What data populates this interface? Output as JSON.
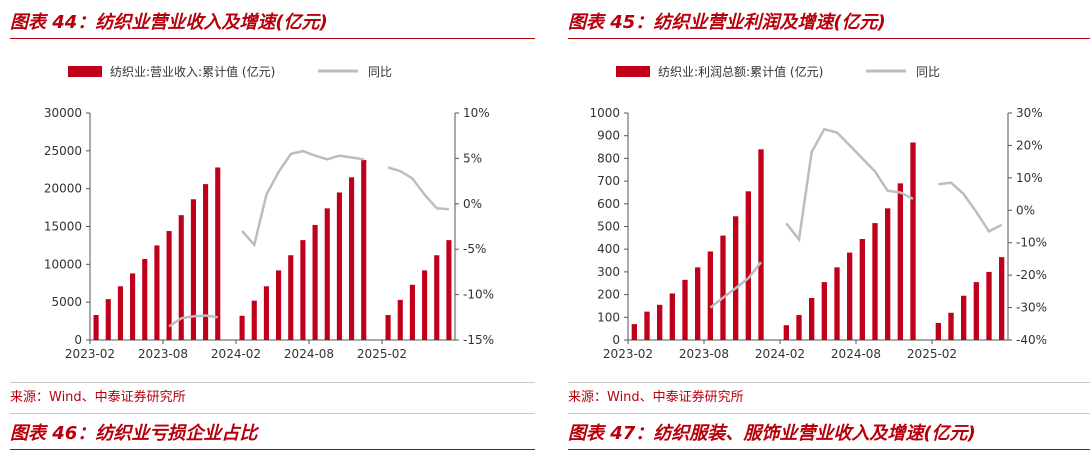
{
  "colors": {
    "accent": "#b8000b",
    "bar": "#c0001b",
    "line": "#bdbdbd"
  },
  "panels": [
    {
      "title": "图表 44：纺织业营业收入及增速(亿元)",
      "source": "来源：Wind、中泰证券研究所",
      "bottom_title": "图表 46：纺织业亏损企业占比"
    },
    {
      "title": "图表 45：纺织业营业利润及增速(亿元)",
      "source": "来源：Wind、中泰证券研究所",
      "bottom_title": "图表 47：纺织服装、服饰业营业收入及增速(亿元)"
    }
  ],
  "chart_data": [
    {
      "type": "bar",
      "legend": {
        "bar": "纺织业:营业收入:累计值 (亿元)",
        "line": "同比"
      },
      "x_tick_labels": [
        "2023-02",
        "2023-08",
        "2024-02",
        "2024-08",
        "2025-02"
      ],
      "left_axis": {
        "min": 0,
        "max": 30000,
        "ticks": [
          "0",
          "5000",
          "10000",
          "15000",
          "20000",
          "25000",
          "30000"
        ]
      },
      "right_axis": {
        "min": -15,
        "max": 10,
        "ticks": [
          "-15%",
          "-10%",
          "-5%",
          "0%",
          "5%",
          "10%"
        ]
      },
      "bar_series": {
        "name": "纺织业:营业收入:累计值 (亿元)",
        "values": [
          3300,
          5400,
          7100,
          8800,
          10700,
          12500,
          14400,
          16500,
          18600,
          20600,
          22800,
          null,
          3200,
          5200,
          7100,
          9200,
          11200,
          13200,
          15200,
          17400,
          19500,
          21500,
          23800,
          null,
          3300,
          5300,
          7300,
          9200,
          11200,
          13200
        ]
      },
      "line_series": {
        "name": "同比",
        "values": [
          null,
          null,
          null,
          null,
          null,
          null,
          -13.5,
          -12.6,
          -12.4,
          -12.3,
          -12.5,
          null,
          -3.0,
          -4.5,
          1.0,
          3.5,
          5.5,
          5.8,
          5.3,
          4.9,
          5.3,
          5.1,
          4.9,
          null,
          4.0,
          3.6,
          2.8,
          1.0,
          -0.5,
          -0.6
        ]
      }
    },
    {
      "type": "bar",
      "legend": {
        "bar": "纺织业:利润总额:累计值 (亿元)",
        "line": "同比"
      },
      "x_tick_labels": [
        "2023-02",
        "2023-08",
        "2024-02",
        "2024-08",
        "2025-02"
      ],
      "left_axis": {
        "min": 0,
        "max": 1000,
        "ticks": [
          "0",
          "100",
          "200",
          "300",
          "400",
          "500",
          "600",
          "700",
          "800",
          "900",
          "1000"
        ]
      },
      "right_axis": {
        "min": -40,
        "max": 30,
        "ticks": [
          "-40%",
          "-30%",
          "-20%",
          "-10%",
          "0%",
          "10%",
          "20%",
          "30%"
        ]
      },
      "bar_series": {
        "name": "纺织业:利润总额:累计值 (亿元)",
        "values": [
          70,
          125,
          155,
          205,
          265,
          320,
          390,
          460,
          545,
          655,
          840,
          null,
          65,
          110,
          185,
          255,
          320,
          385,
          445,
          515,
          580,
          690,
          870,
          null,
          75,
          120,
          195,
          255,
          300,
          365
        ]
      },
      "line_series": {
        "name": "同比",
        "values": [
          null,
          null,
          null,
          null,
          null,
          null,
          -30,
          -27,
          -24,
          -21,
          -16,
          null,
          -4,
          -9,
          18,
          25,
          24,
          20,
          16,
          12,
          6,
          5.5,
          3.5,
          null,
          8,
          8.5,
          5,
          -0.5,
          -6.5,
          -4.5
        ]
      }
    }
  ]
}
